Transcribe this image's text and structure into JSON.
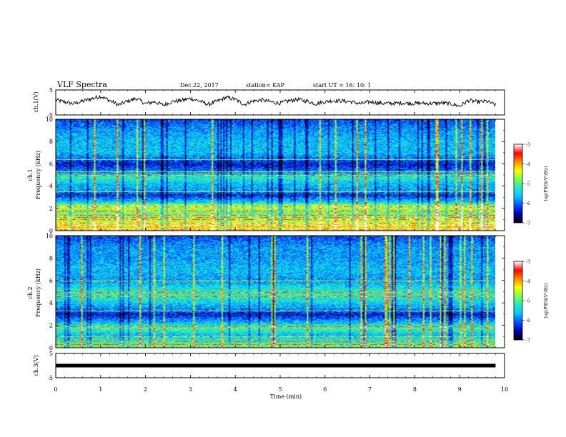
{
  "header": {
    "title": "VLF Spectra",
    "date": "Dec.22, 2017",
    "station": "station= KAP",
    "start_ut": "start  UT =   16: 10: 1"
  },
  "chart_data": [
    {
      "type": "line",
      "panel": "ch1-waveform",
      "ylabel": "ch.1(V)",
      "ylim": [
        -5,
        5
      ],
      "yticks": [
        5,
        -5
      ],
      "xlim": [
        0,
        10
      ],
      "series": [
        {
          "x": [
            0,
            0.2,
            0.4,
            0.6,
            0.8,
            1.0,
            1.2,
            1.4,
            1.6,
            1.8,
            2.0,
            2.2,
            2.4,
            2.6,
            2.8,
            3.0,
            3.2,
            3.4,
            3.6,
            3.8,
            4.0,
            4.2,
            4.4,
            4.6,
            4.8,
            5.0,
            5.2,
            5.4,
            5.6,
            5.8,
            6.0,
            6.2,
            6.4,
            6.6,
            6.8,
            7.0,
            7.2,
            7.4,
            7.6,
            7.8,
            8.0,
            8.2,
            8.4,
            8.6,
            8.8,
            9.0,
            9.2,
            9.4,
            9.6,
            9.8
          ],
          "y": [
            1.0,
            0.2,
            -0.5,
            0.5,
            1.5,
            2.5,
            0.8,
            -1.0,
            0.5,
            1.6,
            -0.5,
            0.3,
            -1.0,
            0.4,
            0.8,
            1.6,
            0.6,
            -0.8,
            0.5,
            2.0,
            1.2,
            -0.8,
            0.6,
            1.0,
            0.2,
            -0.3,
            0.7,
            1.2,
            0.5,
            -0.5,
            0.3,
            0.8,
            0.6,
            0.2,
            -0.5,
            0.3,
            -0.3,
            -0.4,
            -0.3,
            -0.2,
            -0.4,
            -0.3,
            -0.4,
            -0.2,
            -0.5,
            -1.5,
            0.8,
            0.2,
            0.5,
            -1.0
          ]
        }
      ]
    },
    {
      "type": "heatmap",
      "panel": "ch1-spectrogram",
      "ylabel": "ch.1\nFrequency (kHz)",
      "ylabel_lines": [
        "ch.1",
        "Frequency (kHz)"
      ],
      "ylim": [
        0,
        10
      ],
      "yticks": [
        0,
        2,
        4,
        6,
        8,
        10
      ],
      "xlim": [
        0,
        10
      ],
      "colorbar": {
        "label": "log(PSD)(V²/Hz)",
        "ticks": [
          -3,
          -4,
          -5,
          -6,
          -7
        ],
        "range": [
          -7,
          -3
        ]
      },
      "intensity_profile_khz": [
        [
          0,
          -4.0
        ],
        [
          0.5,
          -4.3
        ],
        [
          1.0,
          -4.6
        ],
        [
          1.6,
          -4.9
        ],
        [
          2.2,
          -4.5
        ],
        [
          2.6,
          -5.5
        ],
        [
          3.2,
          -6.3
        ],
        [
          3.6,
          -5.8
        ],
        [
          4.2,
          -5.6
        ],
        [
          4.8,
          -5.2
        ],
        [
          5.4,
          -6.0
        ],
        [
          6.0,
          -6.4
        ],
        [
          7.0,
          -5.6
        ],
        [
          8.0,
          -5.6
        ],
        [
          9.0,
          -5.8
        ],
        [
          10,
          -6.2
        ]
      ],
      "tone_lines_khz": [
        0.2,
        0.5,
        0.7,
        1.0,
        1.2,
        1.4,
        1.8,
        2.2,
        3.5,
        5.0,
        5.3,
        6.4
      ]
    },
    {
      "type": "heatmap",
      "panel": "ch2-spectrogram",
      "ylabel": "ch.2\nFrequency (kHz)",
      "ylabel_lines": [
        "ch.2",
        "Frequency (kHz)"
      ],
      "ylim": [
        0,
        10
      ],
      "yticks": [
        0,
        2,
        4,
        6,
        8,
        10
      ],
      "xlim": [
        0,
        10
      ],
      "colorbar": {
        "label": "log(PSD)(V²/Hz)",
        "ticks": [
          -3,
          -4,
          -5,
          -6,
          -7
        ],
        "range": [
          -7,
          -3
        ]
      },
      "intensity_profile_khz": [
        [
          0,
          -4.8
        ],
        [
          0.6,
          -5.2
        ],
        [
          1.2,
          -5.6
        ],
        [
          1.8,
          -5.0
        ],
        [
          2.4,
          -5.8
        ],
        [
          3.0,
          -6.4
        ],
        [
          3.6,
          -5.8
        ],
        [
          4.2,
          -5.4
        ],
        [
          4.8,
          -5.2
        ],
        [
          5.4,
          -5.4
        ],
        [
          6.0,
          -5.8
        ],
        [
          7.0,
          -5.6
        ],
        [
          8.0,
          -5.8
        ],
        [
          9.0,
          -5.8
        ],
        [
          10,
          -6.2
        ]
      ],
      "tone_lines_khz": [
        0.3,
        0.6,
        1.0,
        1.9,
        3.3,
        4.6,
        5.0,
        6.0
      ]
    },
    {
      "type": "line",
      "panel": "ch3-waveform",
      "ylabel": "ch.3(V)",
      "ylim": [
        -5,
        5
      ],
      "yticks": [
        5,
        -5
      ],
      "xlim": [
        0,
        10
      ],
      "xticks": [
        0,
        1,
        2,
        3,
        4,
        5,
        6,
        7,
        8,
        9,
        10
      ],
      "xlabel": "Time (min)",
      "series": [
        {
          "x": [
            0,
            9.8
          ],
          "y": [
            0,
            0
          ]
        }
      ]
    }
  ],
  "colors": {
    "colormap": [
      "#000000",
      "#0000b4",
      "#0050ff",
      "#00c8ff",
      "#28e6c8",
      "#78ff50",
      "#ffff00",
      "#ff8c00",
      "#ff0000",
      "#ffffff"
    ],
    "axis": "#000000",
    "background": "#ffffff"
  }
}
